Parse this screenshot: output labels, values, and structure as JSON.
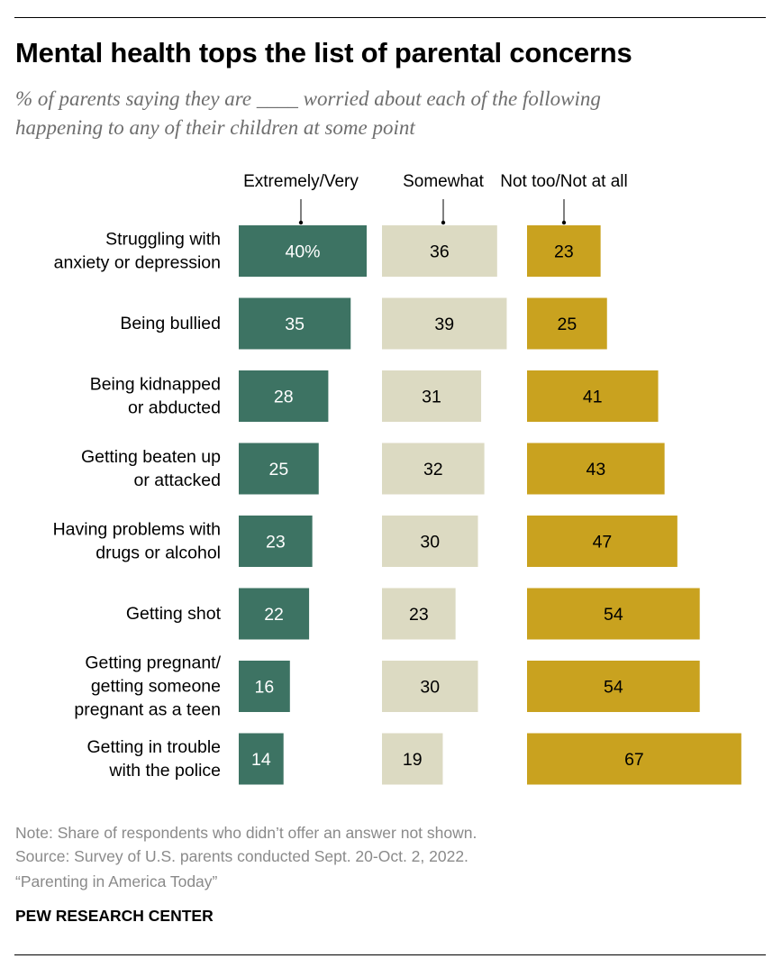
{
  "header": {
    "title": "Mental health tops the list of parental concerns",
    "subtitle_line1": "% of parents saying they are ____ worried about each of the following",
    "subtitle_line2": "happening to any of their children at some point"
  },
  "chart_data": {
    "type": "bar",
    "orientation": "horizontal",
    "grid": false,
    "legend": "column headers above bars",
    "categories": [
      [
        "Struggling with",
        "anxiety or depression"
      ],
      [
        "Being bullied"
      ],
      [
        "Being kidnapped",
        "or abducted"
      ],
      [
        "Getting beaten up",
        "or attacked"
      ],
      [
        "Having problems with",
        "drugs or alcohol"
      ],
      [
        "Getting shot"
      ],
      [
        "Getting pregnant/",
        "getting someone",
        "pregnant as a teen"
      ],
      [
        "Getting in trouble",
        "with the police"
      ]
    ],
    "series": [
      {
        "name": "Extremely/Very",
        "color": "#3d7363",
        "label_color": "#ffffff",
        "values": [
          40,
          35,
          28,
          25,
          23,
          22,
          16,
          14
        ],
        "value_labels": [
          "40%",
          "35",
          "28",
          "25",
          "23",
          "22",
          "16",
          "14"
        ]
      },
      {
        "name": "Somewhat",
        "color": "#dcdac2",
        "label_color": "#000000",
        "values": [
          36,
          39,
          31,
          32,
          30,
          23,
          30,
          19
        ],
        "value_labels": [
          "36",
          "39",
          "31",
          "32",
          "30",
          "23",
          "30",
          "19"
        ]
      },
      {
        "name": "Not too/Not at all",
        "color": "#c9a21f",
        "label_color": "#000000",
        "values": [
          23,
          25,
          41,
          43,
          47,
          54,
          54,
          67
        ],
        "value_labels": [
          "23",
          "25",
          "41",
          "43",
          "47",
          "54",
          "54",
          "67"
        ]
      }
    ]
  },
  "footer": {
    "note": "Note: Share of respondents who didn’t offer an answer not shown.",
    "source": "Source: Survey of U.S. parents conducted Sept. 20-Oct. 2, 2022.",
    "report": "“Parenting in America Today”",
    "org": "PEW RESEARCH CENTER"
  }
}
